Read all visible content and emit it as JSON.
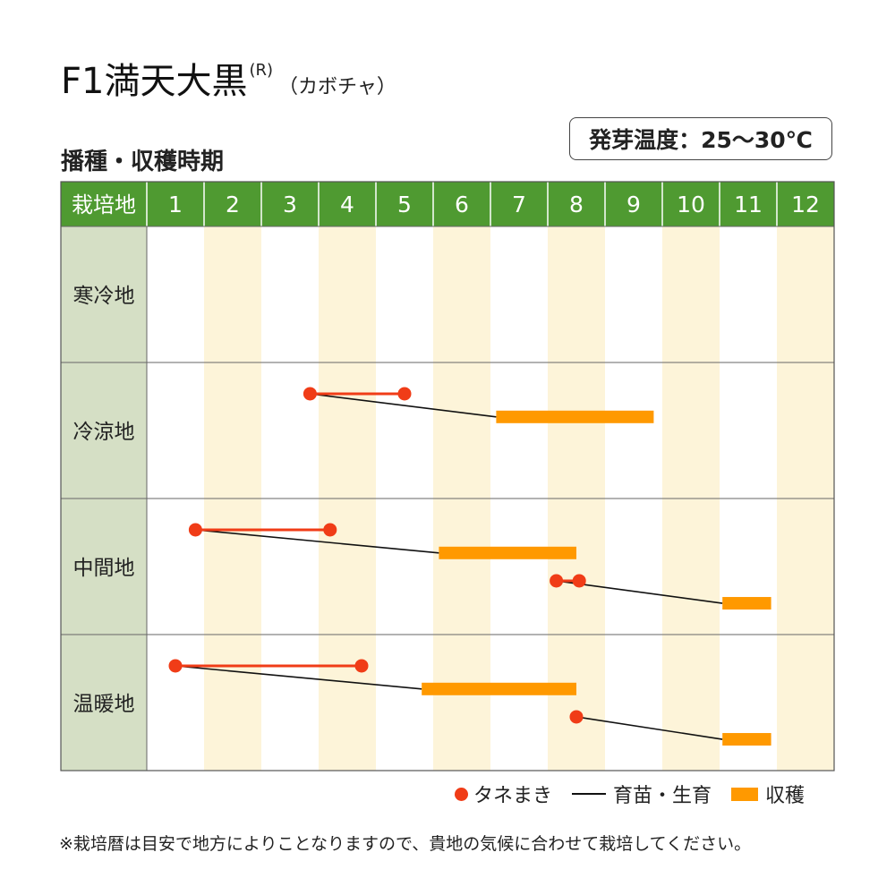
{
  "title": {
    "main": "F1満天大黒",
    "registered": "R",
    "sub": "（カボチャ）"
  },
  "subtitle": "播種・収穫時期",
  "temperature": "発芽温度：25～30℃",
  "legend": {
    "sowing": "タネまき",
    "nursery": "育苗・生育",
    "harvest": "収穫"
  },
  "footnote": "※栽培暦は目安で地方によりことなりますので、貴地の気候に合わせて栽培してください。",
  "colors": {
    "header_green": "#4f9a31",
    "region_col": "#d5dfc5",
    "stripe": "#fdf4d9",
    "sowing": "#f03c17",
    "harvest": "#ff9900",
    "line": "#111111"
  },
  "chart_data": {
    "type": "table",
    "region_header": "栽培地",
    "months": [
      "1",
      "2",
      "3",
      "4",
      "5",
      "6",
      "7",
      "8",
      "9",
      "10",
      "11",
      "12"
    ],
    "rows": [
      {
        "region": "寒冷地",
        "schedules": []
      },
      {
        "region": "冷涼地",
        "schedules": [
          {
            "sowing": [
              3.85,
              5.5
            ],
            "harvest": [
              7.1,
              9.85
            ]
          }
        ]
      },
      {
        "region": "中間地",
        "schedules": [
          {
            "sowing": [
              1.85,
              4.2
            ],
            "harvest": [
              6.1,
              8.5
            ]
          },
          {
            "sowing": [
              8.15,
              8.55
            ],
            "harvest": [
              11.05,
              11.9
            ]
          }
        ]
      },
      {
        "region": "温暖地",
        "schedules": [
          {
            "sowing": [
              1.5,
              4.75
            ],
            "harvest": [
              5.8,
              8.5
            ]
          },
          {
            "sowing": [
              8.5,
              8.5
            ],
            "harvest": [
              11.05,
              11.9
            ]
          }
        ]
      }
    ]
  }
}
